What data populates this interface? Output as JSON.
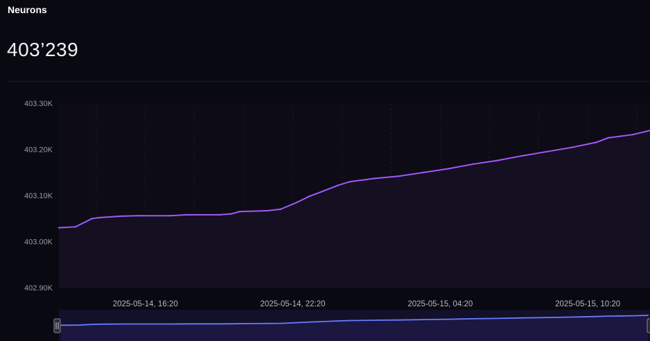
{
  "header": {
    "title": "Neurons",
    "value": "403’239"
  },
  "colors": {
    "background": "#090911",
    "line": "#a259f7",
    "area": "#150f22",
    "navigator_line": "#6b7cff",
    "navigator_bg": "#13102a"
  },
  "chart_data": {
    "type": "area",
    "title": "",
    "xlabel": "",
    "ylabel": "",
    "ylim": [
      402900,
      403300
    ],
    "y_ticks": [
      "402.90K",
      "403.00K",
      "403.10K",
      "403.20K",
      "403.30K"
    ],
    "x_ticks": [
      "2025-05-14, 16:20",
      "2025-05-14, 22:20",
      "2025-05-15, 04:20",
      "2025-05-15, 10:20"
    ],
    "grid": "vertical dashed",
    "legend": "none",
    "navigator": true,
    "series": [
      {
        "x": [
          "2025-05-14 12:49",
          "2025-05-14 13:30",
          "2025-05-14 14:10",
          "2025-05-14 14:30",
          "2025-05-14 15:20",
          "2025-05-14 16:00",
          "2025-05-14 17:20",
          "2025-05-14 18:00",
          "2025-05-14 19:20",
          "2025-05-14 19:50",
          "2025-05-14 20:10",
          "2025-05-14 21:20",
          "2025-05-14 21:50",
          "2025-05-14 22:30",
          "2025-05-14 23:00",
          "2025-05-14 23:30",
          "2025-05-15 00:10",
          "2025-05-15 00:40",
          "2025-05-15 01:40",
          "2025-05-15 02:40",
          "2025-05-15 03:40",
          "2025-05-15 04:40",
          "2025-05-15 05:40",
          "2025-05-15 06:40",
          "2025-05-15 07:40",
          "2025-05-15 08:40",
          "2025-05-15 09:40",
          "2025-05-15 10:40",
          "2025-05-15 11:10",
          "2025-05-15 12:10",
          "2025-05-15 12:52"
        ],
        "y": [
          403030,
          403032,
          403050,
          403052,
          403055,
          403056,
          403056,
          403058,
          403058,
          403060,
          403065,
          403067,
          403070,
          403085,
          403098,
          403108,
          403122,
          403130,
          403137,
          403142,
          403150,
          403158,
          403168,
          403176,
          403186,
          403195,
          403204,
          403215,
          403225,
          403232,
          403241
        ]
      }
    ]
  }
}
